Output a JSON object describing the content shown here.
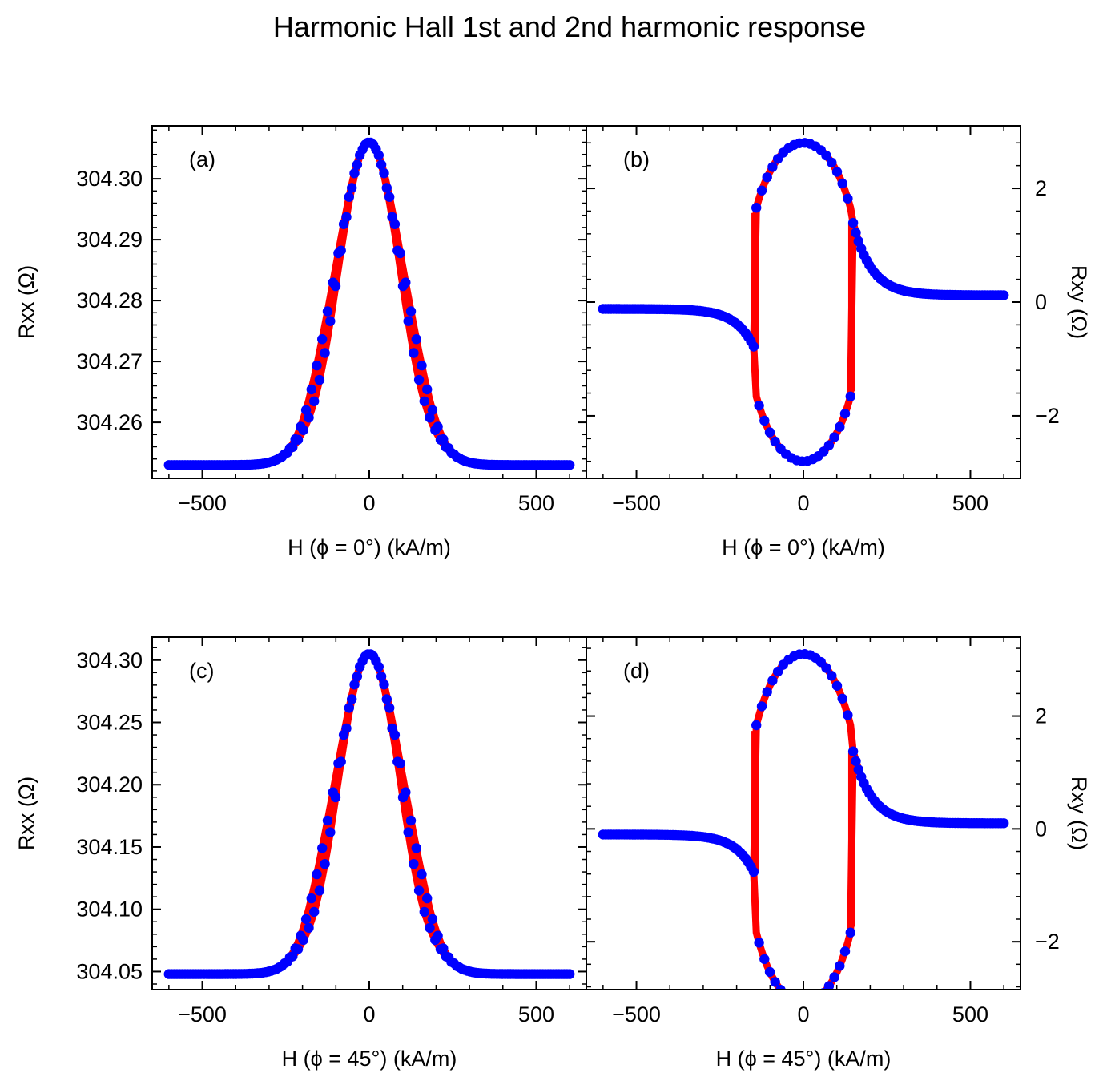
{
  "figure": {
    "title": "Harmonic Hall 1st and 2nd harmonic response",
    "colors": {
      "line": "#ff0000",
      "marker": "#0000ff",
      "axes": "#000000"
    }
  },
  "chart_data": [
    {
      "id": "a",
      "type": "line",
      "panel_label": "(a)",
      "xlabel": "H (ϕ = 0°) (kA/m)",
      "ylabel": "Rxx (Ω)",
      "y_axis_side": "left",
      "xlim": [
        -650,
        650
      ],
      "ylim": [
        304.2508,
        304.3087
      ],
      "xticks": [
        -500,
        0,
        500
      ],
      "xtick_labels": [
        "−500",
        "0",
        "500"
      ],
      "yticks": [
        304.26,
        304.27,
        304.28,
        304.29,
        304.3
      ],
      "ytick_labels": [
        "304.26",
        "304.27",
        "304.28",
        "304.29",
        "304.30"
      ],
      "model": {
        "kind": "first_harmonic",
        "base": 304.253,
        "peak": 304.306,
        "hysteresis_offset": 0.0023
      },
      "series": [
        {
          "branch": "sweep_up_and_down",
          "x_range": [
            -600,
            600
          ],
          "points": 150
        }
      ],
      "grid": false
    },
    {
      "id": "b",
      "type": "line",
      "panel_label": "(b)",
      "xlabel": "H (ϕ = 0°) (kA/m)",
      "ylabel": "Rxy (Ω)",
      "y_axis_side": "right",
      "xlim": [
        -650,
        650
      ],
      "ylim": [
        -3.1,
        3.1
      ],
      "xticks": [
        -500,
        0,
        500
      ],
      "xtick_labels": [
        "−500",
        "0",
        "500"
      ],
      "yticks": [
        -2,
        0,
        2
      ],
      "ytick_labels": [
        "−2",
        "0",
        "2"
      ],
      "model": {
        "kind": "second_harmonic_loop",
        "amplitude": 2.8,
        "switch_field": 145,
        "saturation_value": 0.12,
        "jump_values": [
          1.37,
          -1.35
        ]
      },
      "series": [
        {
          "branch": "sweep_up_and_down",
          "x_range": [
            -600,
            600
          ],
          "points": 150
        }
      ],
      "grid": false
    },
    {
      "id": "c",
      "type": "line",
      "panel_label": "(c)",
      "xlabel": "H (ϕ = 45°) (kA/m)",
      "ylabel": "Rxx (Ω)",
      "y_axis_side": "left",
      "xlim": [
        -650,
        650
      ],
      "ylim": [
        304.0355,
        304.3185
      ],
      "xticks": [
        -500,
        0,
        500
      ],
      "xtick_labels": [
        "−500",
        "0",
        "500"
      ],
      "yticks": [
        304.05,
        304.1,
        304.15,
        304.2,
        304.25,
        304.3
      ],
      "ytick_labels": [
        "304.05",
        "304.10",
        "304.15",
        "304.20",
        "304.25",
        "304.30"
      ],
      "model": {
        "kind": "first_harmonic",
        "base": 304.048,
        "peak": 304.305,
        "hysteresis_offset": 0.012
      },
      "series": [
        {
          "branch": "sweep_up_and_down",
          "x_range": [
            -600,
            600
          ],
          "points": 150
        }
      ],
      "grid": false
    },
    {
      "id": "d",
      "type": "line",
      "panel_label": "(d)",
      "xlabel": "H (ϕ = 45°) (kA/m)",
      "ylabel": "Rxy (Ω)",
      "y_axis_side": "right",
      "xlim": [
        -650,
        650
      ],
      "ylim": [
        -2.85,
        3.4
      ],
      "xticks": [
        -500,
        0,
        500
      ],
      "xtick_labels": [
        "−500",
        "0",
        "500"
      ],
      "yticks": [
        -2,
        0,
        2
      ],
      "ytick_labels": [
        "−2",
        "0",
        "2"
      ],
      "model": {
        "kind": "second_harmonic_loop",
        "amplitude": 3.1,
        "switch_field": 145,
        "saturation_value": 0.1,
        "jump_values": [
          1.37,
          -1.35
        ],
        "level_asymmetry": -0.02
      },
      "series": [
        {
          "branch": "sweep_up_and_down",
          "x_range": [
            -600,
            600
          ],
          "points": 150
        }
      ],
      "grid": false
    }
  ]
}
